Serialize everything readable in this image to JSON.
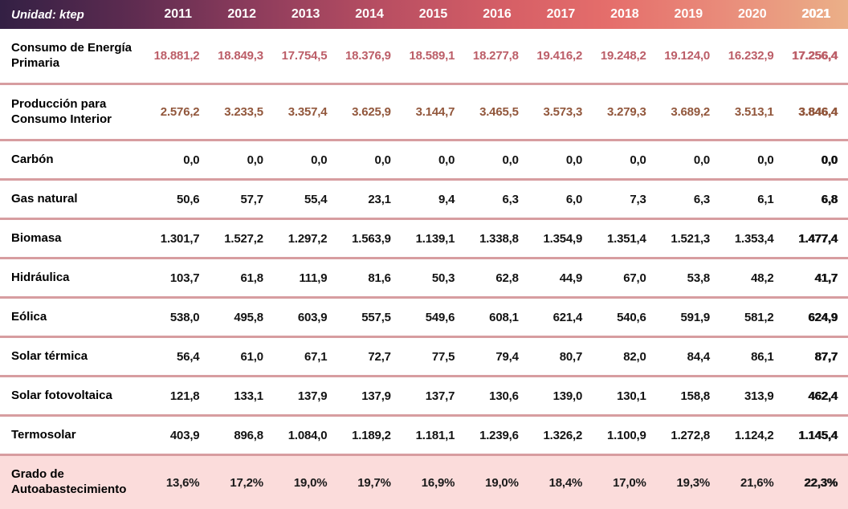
{
  "table": {
    "unit_label": "Unidad: ktep",
    "years": [
      "2011",
      "2012",
      "2013",
      "2014",
      "2015",
      "2016",
      "2017",
      "2018",
      "2019",
      "2020",
      "2021"
    ],
    "rows": [
      {
        "label": "Consumo de Energía Primaria",
        "style": "consumo",
        "height": "tall",
        "values": [
          "18.881,2",
          "18.849,3",
          "17.754,5",
          "18.376,9",
          "18.589,1",
          "18.277,8",
          "19.416,2",
          "19.248,2",
          "19.124,0",
          "16.232,9",
          "17.256,4"
        ]
      },
      {
        "label": "Producción para Consumo Interior",
        "style": "produccion",
        "height": "tall",
        "values": [
          "2.576,2",
          "3.233,5",
          "3.357,4",
          "3.625,9",
          "3.144,7",
          "3.465,5",
          "3.573,3",
          "3.279,3",
          "3.689,2",
          "3.513,1",
          "3.846,4"
        ]
      },
      {
        "label": "Carbón",
        "style": "normal",
        "height": "single",
        "values": [
          "0,0",
          "0,0",
          "0,0",
          "0,0",
          "0,0",
          "0,0",
          "0,0",
          "0,0",
          "0,0",
          "0,0",
          "0,0"
        ]
      },
      {
        "label": "Gas natural",
        "style": "normal",
        "height": "single",
        "values": [
          "50,6",
          "57,7",
          "55,4",
          "23,1",
          "9,4",
          "6,3",
          "6,0",
          "7,3",
          "6,3",
          "6,1",
          "6,8"
        ]
      },
      {
        "label": "Biomasa",
        "style": "normal",
        "height": "single",
        "values": [
          "1.301,7",
          "1.527,2",
          "1.297,2",
          "1.563,9",
          "1.139,1",
          "1.338,8",
          "1.354,9",
          "1.351,4",
          "1.521,3",
          "1.353,4",
          "1.477,4"
        ]
      },
      {
        "label": "Hidráulica",
        "style": "normal",
        "height": "single",
        "values": [
          "103,7",
          "61,8",
          "111,9",
          "81,6",
          "50,3",
          "62,8",
          "44,9",
          "67,0",
          "53,8",
          "48,2",
          "41,7"
        ]
      },
      {
        "label": "Eólica",
        "style": "normal",
        "height": "single",
        "values": [
          "538,0",
          "495,8",
          "603,9",
          "557,5",
          "549,6",
          "608,1",
          "621,4",
          "540,6",
          "591,9",
          "581,2",
          "624,9"
        ]
      },
      {
        "label": "Solar térmica",
        "style": "normal",
        "height": "single",
        "values": [
          "56,4",
          "61,0",
          "67,1",
          "72,7",
          "77,5",
          "79,4",
          "80,7",
          "82,0",
          "84,4",
          "86,1",
          "87,7"
        ]
      },
      {
        "label": "Solar fotovoltaica",
        "style": "normal",
        "height": "single",
        "values": [
          "121,8",
          "133,1",
          "137,9",
          "137,9",
          "137,7",
          "130,6",
          "139,0",
          "130,1",
          "158,8",
          "313,9",
          "462,4"
        ]
      },
      {
        "label": "Termosolar",
        "style": "normal",
        "height": "single",
        "values": [
          "403,9",
          "896,8",
          "1.084,0",
          "1.189,2",
          "1.181,1",
          "1.239,6",
          "1.326,2",
          "1.100,9",
          "1.272,8",
          "1.124,2",
          "1.145,4"
        ]
      },
      {
        "label": "Grado de Autoabastecimiento",
        "style": "percent",
        "height": "tall",
        "values": [
          "13,6%",
          "17,2%",
          "19,0%",
          "19,7%",
          "16,9%",
          "19,0%",
          "18,4%",
          "17,0%",
          "19,3%",
          "21,6%",
          "22,3%"
        ]
      }
    ]
  },
  "colors": {
    "header_gradient_start": "#332044",
    "header_gradient_mid": "#d65f66",
    "header_gradient_end": "#ebb088",
    "separator_line": "#d79da0",
    "percent_row_background": "#fbdcdb",
    "consumo_values": "#bc5e68",
    "produccion_values": "#92573c",
    "default_values": "#131313",
    "header_text": "#ffffff"
  },
  "chart_data": {
    "type": "table",
    "title": "Unidad: ktep",
    "categories": [
      2011,
      2012,
      2013,
      2014,
      2015,
      2016,
      2017,
      2018,
      2019,
      2020,
      2021
    ],
    "series": [
      {
        "name": "Consumo de Energía Primaria",
        "unit": "ktep",
        "values": [
          18881.2,
          18849.3,
          17754.5,
          18376.9,
          18589.1,
          18277.8,
          19416.2,
          19248.2,
          19124.0,
          16232.9,
          17256.4
        ]
      },
      {
        "name": "Producción para Consumo Interior",
        "unit": "ktep",
        "values": [
          2576.2,
          3233.5,
          3357.4,
          3625.9,
          3144.7,
          3465.5,
          3573.3,
          3279.3,
          3689.2,
          3513.1,
          3846.4
        ]
      },
      {
        "name": "Carbón",
        "unit": "ktep",
        "values": [
          0.0,
          0.0,
          0.0,
          0.0,
          0.0,
          0.0,
          0.0,
          0.0,
          0.0,
          0.0,
          0.0
        ]
      },
      {
        "name": "Gas natural",
        "unit": "ktep",
        "values": [
          50.6,
          57.7,
          55.4,
          23.1,
          9.4,
          6.3,
          6.0,
          7.3,
          6.3,
          6.1,
          6.8
        ]
      },
      {
        "name": "Biomasa",
        "unit": "ktep",
        "values": [
          1301.7,
          1527.2,
          1297.2,
          1563.9,
          1139.1,
          1338.8,
          1354.9,
          1351.4,
          1521.3,
          1353.4,
          1477.4
        ]
      },
      {
        "name": "Hidráulica",
        "unit": "ktep",
        "values": [
          103.7,
          61.8,
          111.9,
          81.6,
          50.3,
          62.8,
          44.9,
          67.0,
          53.8,
          48.2,
          41.7
        ]
      },
      {
        "name": "Eólica",
        "unit": "ktep",
        "values": [
          538.0,
          495.8,
          603.9,
          557.5,
          549.6,
          608.1,
          621.4,
          540.6,
          591.9,
          581.2,
          624.9
        ]
      },
      {
        "name": "Solar térmica",
        "unit": "ktep",
        "values": [
          56.4,
          61.0,
          67.1,
          72.7,
          77.5,
          79.4,
          80.7,
          82.0,
          84.4,
          86.1,
          87.7
        ]
      },
      {
        "name": "Solar fotovoltaica",
        "unit": "ktep",
        "values": [
          121.8,
          133.1,
          137.9,
          137.9,
          137.7,
          130.6,
          139.0,
          130.1,
          158.8,
          313.9,
          462.4
        ]
      },
      {
        "name": "Termosolar",
        "unit": "ktep",
        "values": [
          403.9,
          896.8,
          1084.0,
          1189.2,
          1181.1,
          1239.6,
          1326.2,
          1100.9,
          1272.8,
          1124.2,
          1145.4
        ]
      },
      {
        "name": "Grado de Autoabastecimiento",
        "unit": "%",
        "values": [
          13.6,
          17.2,
          19.0,
          19.7,
          16.9,
          19.0,
          18.4,
          17.0,
          19.3,
          21.6,
          22.3
        ]
      }
    ]
  }
}
